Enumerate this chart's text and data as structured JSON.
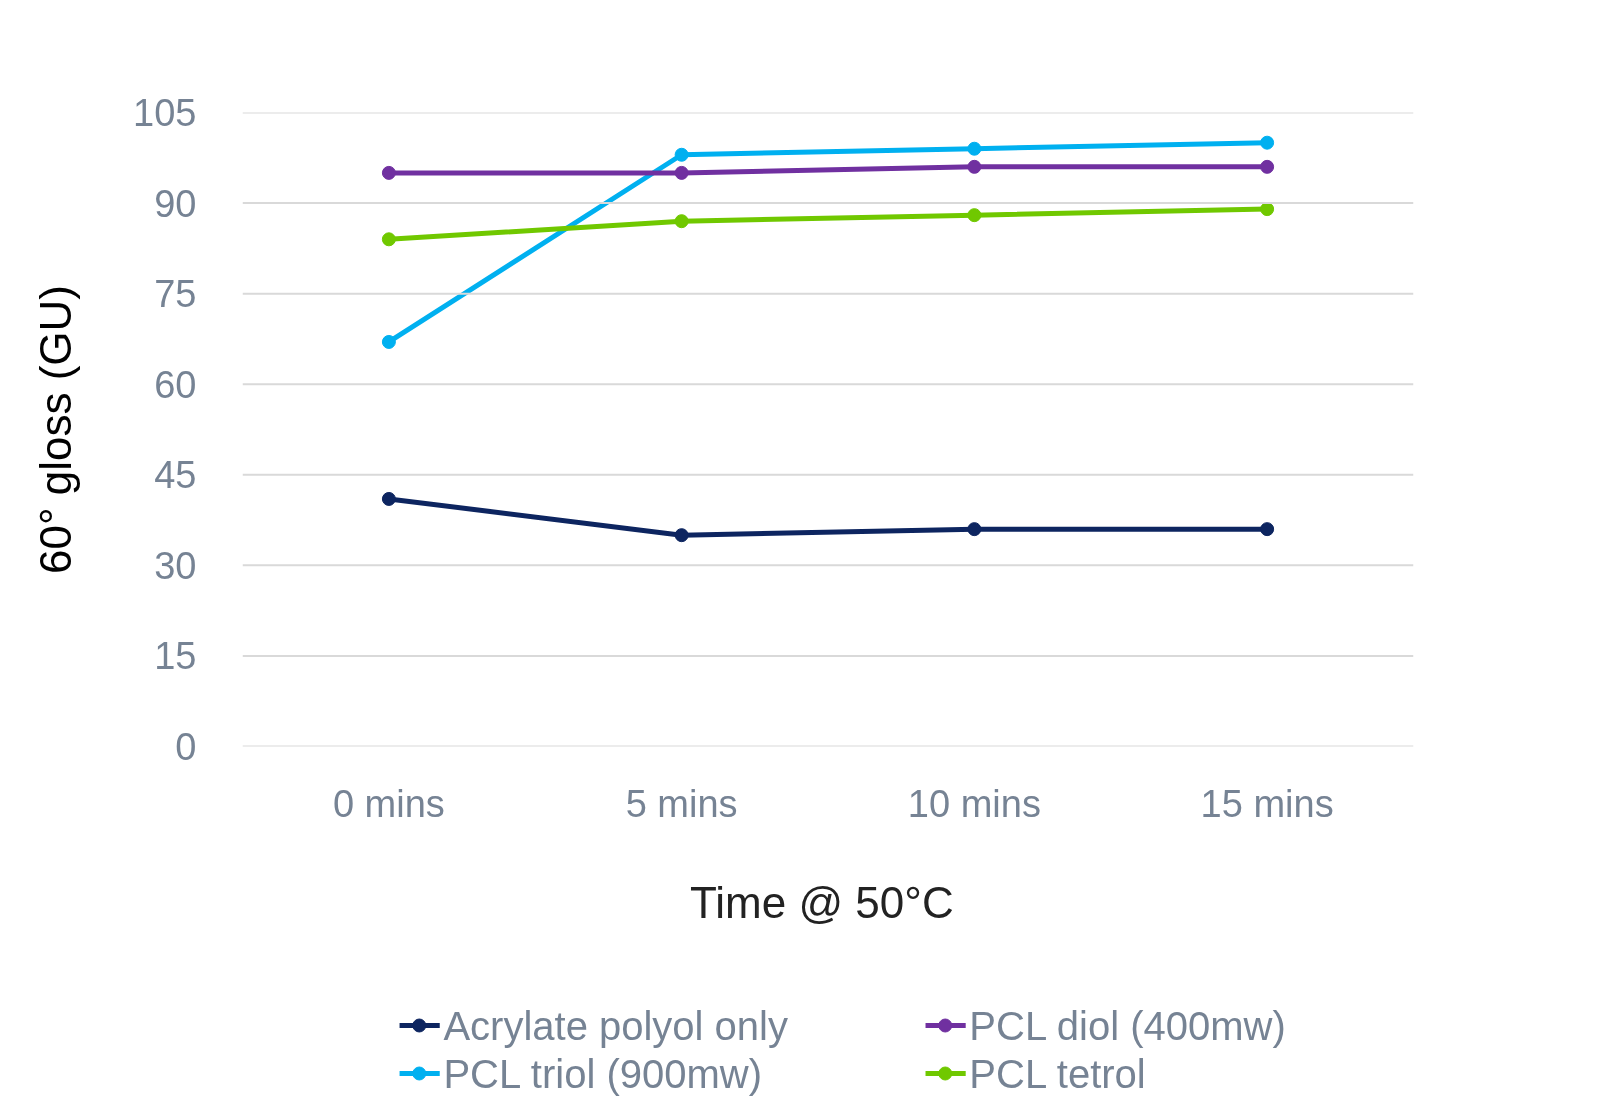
{
  "chart_data": {
    "type": "line",
    "xlabel": "Time @  50°C",
    "ylabel": "60° gloss (GU)",
    "categories": [
      "0 mins",
      "5 mins",
      "10 mins",
      "15 mins"
    ],
    "series": [
      {
        "name": "Acrylate polyol only",
        "color": "#0d2560",
        "values": [
          41,
          35,
          36,
          36
        ]
      },
      {
        "name": "PCL triol (900mw)",
        "color": "#00b0f0",
        "values": [
          67,
          98,
          99,
          100
        ]
      },
      {
        "name": "PCL diol (400mw)",
        "color": "#7030a0",
        "values": [
          95,
          95,
          96,
          96
        ]
      },
      {
        "name": "PCL tetrol",
        "color": "#70c800",
        "values": [
          84,
          87,
          88,
          89
        ]
      }
    ],
    "ylim": [
      0,
      105
    ],
    "yticks": [
      0,
      15,
      30,
      45,
      60,
      75,
      90,
      105
    ],
    "grid": "y",
    "legend": "bottom",
    "marker": "circle",
    "line_style": "solid"
  }
}
